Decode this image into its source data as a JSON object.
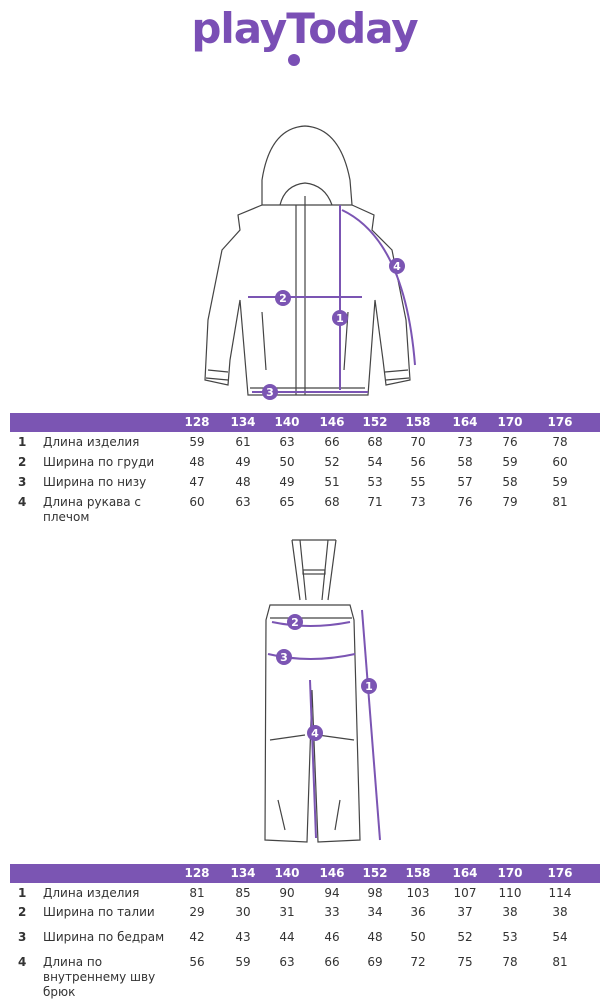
{
  "logo": {
    "text": "playToday",
    "color": "#7a4fb5"
  },
  "accent": "#7b55b3",
  "sizes": [
    "128",
    "134",
    "140",
    "146",
    "152",
    "158",
    "164",
    "170",
    "176"
  ],
  "jacket": {
    "markers": [
      "1",
      "2",
      "3",
      "4"
    ],
    "rows": [
      {
        "num": "1",
        "label": "Длина изделия",
        "values": [
          "59",
          "61",
          "63",
          "66",
          "68",
          "70",
          "73",
          "76",
          "78"
        ]
      },
      {
        "num": "2",
        "label": "Ширина по груди",
        "values": [
          "48",
          "49",
          "50",
          "52",
          "54",
          "56",
          "58",
          "59",
          "60"
        ]
      },
      {
        "num": "3",
        "label": "Ширина по низу",
        "values": [
          "47",
          "48",
          "49",
          "51",
          "53",
          "55",
          "57",
          "58",
          "59"
        ]
      },
      {
        "num": "4",
        "label": "Длина рукава с плечом",
        "values": [
          "60",
          "63",
          "65",
          "68",
          "71",
          "73",
          "76",
          "79",
          "81"
        ]
      }
    ]
  },
  "pants": {
    "markers": [
      "1",
      "2",
      "3",
      "4"
    ],
    "rows": [
      {
        "num": "1",
        "label": "Длина изделия",
        "values": [
          "81",
          "85",
          "90",
          "94",
          "98",
          "103",
          "107",
          "110",
          "114"
        ]
      },
      {
        "num": "2",
        "label": "Ширина по талии",
        "values": [
          "29",
          "30",
          "31",
          "33",
          "34",
          "36",
          "37",
          "38",
          "38"
        ]
      },
      {
        "num": "3",
        "label": "Ширина по бедрам",
        "values": [
          "42",
          "43",
          "44",
          "46",
          "48",
          "50",
          "52",
          "53",
          "54"
        ]
      },
      {
        "num": "4",
        "label": "Длина по внутреннему шву брюк",
        "values": [
          "56",
          "59",
          "63",
          "66",
          "69",
          "72",
          "75",
          "78",
          "81"
        ]
      }
    ]
  }
}
